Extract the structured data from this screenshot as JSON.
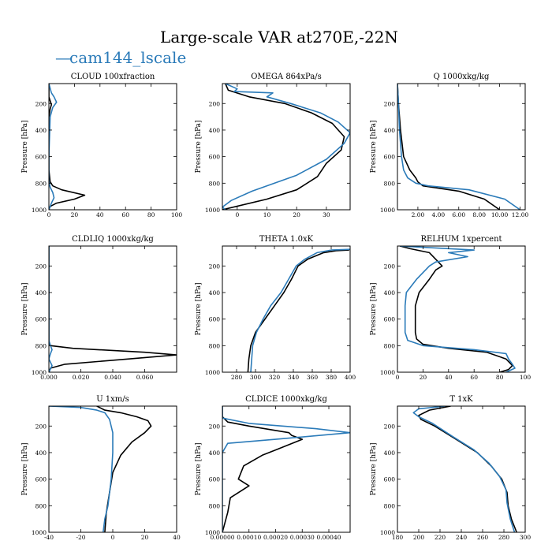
{
  "figure": {
    "title": "Large-scale VAR at270E,-22N",
    "legend": "cam144_lscale",
    "legend_prefix": "—",
    "colors": {
      "obs": "#000000",
      "model": "#2b7bb9"
    }
  },
  "chart_data": [
    {
      "type": "line",
      "title": "CLOUD  100xfraction",
      "ylabel": "Pressure [hPa]",
      "xlim": [
        0,
        100
      ],
      "ylim": [
        1000,
        50
      ],
      "xticks": [
        0,
        20,
        40,
        60,
        80,
        100
      ],
      "xtick_labels": [
        "0",
        "20",
        "40",
        "60",
        "80",
        "100"
      ],
      "yticks": [
        200,
        400,
        600,
        800,
        1000
      ],
      "ytick_labels": [
        "200",
        "400",
        "600",
        "800",
        "1000"
      ],
      "series": [
        {
          "color": "#000000",
          "x": [
            0,
            0,
            1,
            2,
            1,
            0,
            0,
            1,
            3,
            10,
            28,
            20,
            6,
            1,
            0
          ],
          "y": [
            50,
            150,
            180,
            210,
            240,
            300,
            700,
            790,
            820,
            850,
            890,
            920,
            950,
            975,
            1000
          ]
        },
        {
          "color": "#2b7bb9",
          "x": [
            0,
            2,
            4,
            6,
            3,
            1,
            0,
            0,
            1,
            3,
            4,
            2,
            0
          ],
          "y": [
            50,
            120,
            150,
            190,
            230,
            300,
            600,
            780,
            830,
            870,
            910,
            950,
            1000
          ]
        }
      ]
    },
    {
      "type": "line",
      "title": "OMEGA  864xPa/s",
      "ylabel": "Pressure [hPa]",
      "xlim": [
        -5,
        38
      ],
      "ylim": [
        1000,
        50
      ],
      "xticks": [
        0,
        10,
        20,
        30
      ],
      "xtick_labels": [
        "0",
        "10",
        "20",
        "30"
      ],
      "yticks": [
        200,
        400,
        600,
        800,
        1000
      ],
      "ytick_labels": [
        "200",
        "400",
        "600",
        "800",
        "1000"
      ],
      "series": [
        {
          "color": "#000000",
          "x": [
            -4,
            -3,
            4,
            16,
            25,
            32,
            36,
            35,
            30,
            27,
            20,
            10,
            -5
          ],
          "y": [
            50,
            100,
            150,
            200,
            270,
            350,
            450,
            550,
            650,
            750,
            850,
            920,
            1000
          ]
        },
        {
          "color": "#2b7bb9",
          "x": [
            -4,
            0,
            -1,
            12,
            10,
            18,
            28,
            34,
            38,
            36,
            30,
            20,
            5,
            -2,
            -5,
            -4
          ],
          "y": [
            50,
            90,
            110,
            120,
            150,
            200,
            270,
            340,
            420,
            500,
            620,
            740,
            860,
            930,
            980,
            1000
          ]
        }
      ]
    },
    {
      "type": "line",
      "title": "Q  1000xkg/kg",
      "ylabel": "Pressure [hPa]",
      "xlim": [
        0,
        12.5
      ],
      "ylim": [
        1000,
        50
      ],
      "xticks": [
        2,
        4,
        6,
        8,
        10,
        12
      ],
      "xtick_labels": [
        "2.00",
        "4.00",
        "6.00",
        "8.00",
        "10.00",
        "12.00"
      ],
      "yticks": [
        200,
        400,
        600,
        800,
        1000
      ],
      "ytick_labels": [
        "200",
        "400",
        "600",
        "800",
        "1000"
      ],
      "series": [
        {
          "color": "#000000",
          "x": [
            0,
            0.1,
            0.3,
            0.6,
            1.2,
            1.8,
            2.0,
            2.5,
            6.0,
            8.5,
            10.0
          ],
          "y": [
            50,
            200,
            400,
            600,
            700,
            760,
            790,
            820,
            860,
            920,
            1000
          ]
        },
        {
          "color": "#2b7bb9",
          "x": [
            0,
            0.1,
            0.2,
            0.4,
            0.6,
            1.0,
            1.8,
            3.0,
            7.0,
            10.5,
            12.0
          ],
          "y": [
            50,
            200,
            400,
            600,
            700,
            760,
            800,
            820,
            850,
            920,
            1000
          ]
        }
      ]
    },
    {
      "type": "line",
      "title": "CLDLIQ  1000xkg/kg",
      "ylabel": "Pressure [hPa]",
      "xlim": [
        0,
        0.08
      ],
      "ylim": [
        1000,
        50
      ],
      "xticks": [
        0,
        0.02,
        0.04,
        0.06
      ],
      "xtick_labels": [
        "0.000",
        "0.020",
        "0.040",
        "0.060"
      ],
      "yticks": [
        200,
        400,
        600,
        800,
        1000
      ],
      "ytick_labels": [
        "200",
        "400",
        "600",
        "800",
        "1000"
      ],
      "series": [
        {
          "color": "#000000",
          "x": [
            0,
            0,
            0.001,
            0.015,
            0.06,
            0.08,
            0.05,
            0.01,
            0.001,
            0
          ],
          "y": [
            50,
            780,
            800,
            820,
            850,
            870,
            900,
            940,
            970,
            1000
          ]
        },
        {
          "color": "#2b7bb9",
          "x": [
            0,
            0,
            0.001,
            0.002,
            0.001,
            0,
            0.002,
            0
          ],
          "y": [
            50,
            760,
            800,
            830,
            860,
            900,
            950,
            1000
          ]
        }
      ]
    },
    {
      "type": "line",
      "title": "THETA  1.0xK",
      "ylabel": "Pressure [hPa]",
      "xlim": [
        265,
        400
      ],
      "ylim": [
        1000,
        50
      ],
      "xticks": [
        280,
        300,
        320,
        340,
        360,
        380,
        400
      ],
      "xtick_labels": [
        "280",
        "300",
        "320",
        "340",
        "360",
        "380",
        "400"
      ],
      "yticks": [
        200,
        400,
        600,
        800,
        1000
      ],
      "ytick_labels": [
        "200",
        "400",
        "600",
        "800",
        "1000"
      ],
      "series": [
        {
          "color": "#000000",
          "x": [
            399,
            385,
            372,
            355,
            345,
            338,
            330,
            320,
            310,
            300,
            295,
            293,
            292
          ],
          "y": [
            80,
            85,
            100,
            150,
            200,
            300,
            400,
            500,
            600,
            700,
            800,
            900,
            1000
          ]
        },
        {
          "color": "#2b7bb9",
          "x": [
            400,
            380,
            365,
            352,
            343,
            335,
            327,
            316,
            308,
            301,
            297,
            296,
            295
          ],
          "y": [
            75,
            80,
            100,
            150,
            200,
            300,
            400,
            500,
            600,
            700,
            800,
            900,
            1000
          ]
        }
      ]
    },
    {
      "type": "line",
      "title": "RELHUM  1xpercent",
      "ylabel": "Pressure [hPa]",
      "xlim": [
        0,
        100
      ],
      "ylim": [
        1000,
        50
      ],
      "xticks": [
        0,
        20,
        40,
        60,
        80,
        100
      ],
      "xtick_labels": [
        "0",
        "20",
        "40",
        "60",
        "80",
        "100"
      ],
      "yticks": [
        200,
        400,
        600,
        800,
        1000
      ],
      "ytick_labels": [
        "200",
        "400",
        "600",
        "800",
        "1000"
      ],
      "series": [
        {
          "color": "#000000",
          "x": [
            2,
            10,
            25,
            30,
            35,
            30,
            25,
            17,
            14,
            14,
            14,
            15,
            20,
            40,
            70,
            85,
            90,
            87,
            80
          ],
          "y": [
            50,
            70,
            100,
            150,
            200,
            230,
            300,
            400,
            500,
            600,
            700,
            750,
            790,
            820,
            850,
            900,
            950,
            980,
            1000
          ]
        },
        {
          "color": "#2b7bb9",
          "x": [
            2,
            60,
            40,
            55,
            30,
            25,
            15,
            7,
            6,
            6,
            6,
            8,
            20,
            60,
            85,
            87,
            90,
            92,
            85
          ],
          "y": [
            50,
            80,
            100,
            130,
            170,
            200,
            300,
            400,
            500,
            600,
            700,
            760,
            800,
            830,
            860,
            900,
            940,
            970,
            1000
          ]
        }
      ]
    },
    {
      "type": "line",
      "title": "U  1xm/s",
      "ylabel": "Pressure [hPa]",
      "xlim": [
        -40,
        40
      ],
      "ylim": [
        1000,
        50
      ],
      "xticks": [
        -40,
        -20,
        0,
        20,
        40
      ],
      "xtick_labels": [
        "-40",
        "-20",
        "0",
        "20",
        "40"
      ],
      "yticks": [
        200,
        400,
        600,
        800,
        1000
      ],
      "ytick_labels": [
        "200",
        "400",
        "600",
        "800",
        "1000"
      ],
      "series": [
        {
          "color": "#000000",
          "x": [
            -10,
            -5,
            5,
            15,
            22,
            24,
            20,
            12,
            5,
            0,
            -2,
            -4,
            -5
          ],
          "y": [
            50,
            80,
            100,
            130,
            160,
            200,
            250,
            320,
            420,
            550,
            700,
            850,
            1000
          ]
        },
        {
          "color": "#2b7bb9",
          "x": [
            -40,
            -20,
            -10,
            -5,
            -2,
            0,
            0,
            -1,
            -3,
            -5,
            -6
          ],
          "y": [
            50,
            60,
            80,
            100,
            150,
            250,
            400,
            600,
            800,
            900,
            1000
          ]
        }
      ]
    },
    {
      "type": "line",
      "title": "CLDICE  1000xkg/kg",
      "ylabel": "Pressure [hPa]",
      "xlim": [
        0,
        0.00048
      ],
      "ylim": [
        1000,
        50
      ],
      "xticks": [
        0,
        0.0001,
        0.0002,
        0.0003,
        0.0004
      ],
      "xtick_labels": [
        "0.00000",
        "0.00010",
        "0.00020",
        "0.00030",
        "0.00040"
      ],
      "yticks": [
        200,
        400,
        600,
        800,
        1000
      ],
      "ytick_labels": [
        "200",
        "400",
        "600",
        "800",
        "1000"
      ],
      "series": [
        {
          "color": "#000000",
          "x": [
            0,
            0,
            2e-05,
            0.0001,
            0.00025,
            0.00026,
            0.0003,
            0.0002,
            0.00015,
            8e-05,
            6e-05,
            0.0001,
            3e-05,
            2e-05,
            0
          ],
          "y": [
            50,
            130,
            170,
            200,
            250,
            270,
            300,
            380,
            420,
            500,
            600,
            650,
            740,
            850,
            1000
          ]
        },
        {
          "color": "#2b7bb9",
          "x": [
            0,
            0,
            0.0001,
            0.00035,
            0.00048,
            0.0002,
            2e-05,
            0,
            0
          ],
          "y": [
            50,
            140,
            180,
            220,
            250,
            300,
            330,
            400,
            1000
          ]
        }
      ]
    },
    {
      "type": "line",
      "title": "T  1xK",
      "ylabel": "Pressure [hPa]",
      "xlim": [
        180,
        300
      ],
      "ylim": [
        1000,
        50
      ],
      "xticks": [
        180,
        200,
        220,
        240,
        260,
        280,
        300
      ],
      "xtick_labels": [
        "180",
        "200",
        "220",
        "240",
        "260",
        "280",
        "300"
      ],
      "yticks": [
        200,
        400,
        600,
        800,
        1000
      ],
      "ytick_labels": [
        "200",
        "400",
        "600",
        "800",
        "1000"
      ],
      "series": [
        {
          "color": "#000000",
          "x": [
            230,
            210,
            200,
            202,
            215,
            235,
            255,
            268,
            278,
            283,
            284,
            287,
            292
          ],
          "y": [
            50,
            80,
            120,
            150,
            200,
            300,
            400,
            500,
            600,
            700,
            800,
            900,
            1000
          ]
        },
        {
          "color": "#2b7bb9",
          "x": [
            225,
            200,
            195,
            200,
            213,
            232,
            252,
            266,
            276,
            282,
            283,
            286,
            290
          ],
          "y": [
            50,
            70,
            100,
            130,
            180,
            280,
            380,
            480,
            580,
            680,
            780,
            900,
            1000
          ]
        }
      ]
    }
  ]
}
